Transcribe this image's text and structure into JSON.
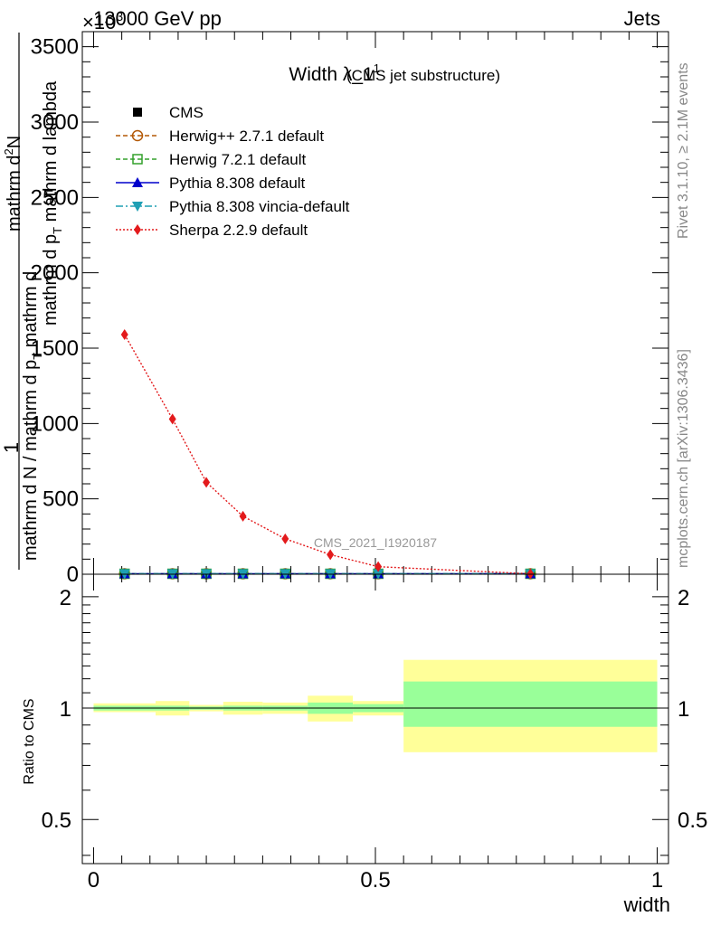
{
  "header": {
    "energy_label": "13000 GeV pp",
    "process_label": "Jets",
    "exponent_label": "×10",
    "exponent_power": "3"
  },
  "side_labels": {
    "rivet": "Rivet 3.1.10, ≥ 2.1M events",
    "mcplots": "mcplots.cern.ch [arXiv:1306.3436]"
  },
  "chart_data": [
    {
      "type": "line",
      "title": "Width λ_1",
      "title_superscript": "1",
      "subtitle": "(CMS jet substructure)",
      "watermark": "CMS_2021_I1920187",
      "ylabel_numerator_top": "1",
      "ylabel_numerator": "mathrm d",
      "ylabel_numerator_sup": "2",
      "ylabel_numerator_tail": "N",
      "ylabel_denominator_top": "mathrm d p",
      "ylabel_denominator_top_sub": "T",
      "ylabel_denominator_top_tail": " mathrm d lambda",
      "ylabel_denominator": "mathrm d N / mathrm d p",
      "ylabel_denominator_sub": "T",
      "ylabel_denominator_tail": " mathrm d",
      "xlim": [
        -0.02,
        1.02
      ],
      "ylim": [
        0,
        3.6
      ],
      "yticks": [
        0,
        0.5,
        1.0,
        1.5,
        2.0,
        2.5,
        3.0,
        3.5
      ],
      "ytick_labels": [
        "0",
        "500",
        "1000",
        "1500",
        "2000",
        "2500",
        "3000",
        "3500"
      ],
      "x_bin_edges": [
        0,
        0.11,
        0.17,
        0.23,
        0.3,
        0.38,
        0.46,
        0.55,
        1.0
      ],
      "legend_position": "top-left",
      "series": [
        {
          "name": "CMS",
          "color": "#000000",
          "marker": "square-filled",
          "x": [
            0.055,
            0.14,
            0.2,
            0.265,
            0.34,
            0.42,
            0.505,
            0.775
          ],
          "y": [
            0.003,
            0.003,
            0.003,
            0.003,
            0.003,
            0.003,
            0.003,
            0.003
          ]
        },
        {
          "name": "Herwig++ 2.7.1 default",
          "color": "#b35806",
          "marker": "circle-open",
          "dash": "5,3",
          "x": [
            0.055,
            0.14,
            0.2,
            0.265,
            0.34,
            0.42,
            0.505,
            0.775
          ],
          "y": [
            0.003,
            0.003,
            0.003,
            0.003,
            0.003,
            0.003,
            0.003,
            0.003
          ]
        },
        {
          "name": "Herwig 7.2.1 default",
          "color": "#33a02c",
          "marker": "square-open",
          "dash": "5,3",
          "x": [
            0.055,
            0.14,
            0.2,
            0.265,
            0.34,
            0.42,
            0.505,
            0.775
          ],
          "y": [
            0.003,
            0.003,
            0.003,
            0.003,
            0.003,
            0.003,
            0.003,
            0.003
          ]
        },
        {
          "name": "Pythia 8.308 default",
          "color": "#0000cc",
          "marker": "triangle-up",
          "x": [
            0.055,
            0.14,
            0.2,
            0.265,
            0.34,
            0.42,
            0.505,
            0.775
          ],
          "y": [
            0.003,
            0.003,
            0.003,
            0.003,
            0.003,
            0.003,
            0.003,
            0.003
          ]
        },
        {
          "name": "Pythia 8.308 vincia-default",
          "color": "#1f9fb4",
          "marker": "triangle-down",
          "dash": "8,3,2,3",
          "x": [
            0.055,
            0.14,
            0.2,
            0.265,
            0.34,
            0.42,
            0.505,
            0.775
          ],
          "y": [
            0.003,
            0.003,
            0.003,
            0.003,
            0.003,
            0.003,
            0.003,
            0.003
          ]
        },
        {
          "name": "Sherpa 2.2.9 default",
          "color": "#e31a1c",
          "marker": "diamond",
          "dash": "2,2",
          "x": [
            0.055,
            0.14,
            0.2,
            0.265,
            0.34,
            0.42,
            0.505,
            0.775
          ],
          "y": [
            1.59,
            1.03,
            0.61,
            0.385,
            0.235,
            0.13,
            0.05,
            0.003
          ]
        }
      ]
    },
    {
      "type": "area",
      "ylabel": "Ratio to CMS",
      "xlabel": "width",
      "xlim": [
        -0.02,
        1.02
      ],
      "ylim": [
        0.38,
        2.3
      ],
      "log_scale_y": true,
      "yticks": [
        0.5,
        1,
        2
      ],
      "ytick_labels": [
        "0.5",
        "1",
        "2"
      ],
      "xticks": [
        0,
        0.5,
        1
      ],
      "xtick_labels": [
        "0",
        "0.5",
        "1"
      ],
      "reference_line": 1,
      "bands": {
        "bin_edges": [
          0,
          0.11,
          0.17,
          0.23,
          0.3,
          0.38,
          0.46,
          0.55,
          1.0
        ],
        "inner_color": "#99ff99",
        "outer_color": "#ffff99",
        "inner_low": [
          0.985,
          0.985,
          0.99,
          0.985,
          0.985,
          0.965,
          0.975,
          0.89
        ],
        "inner_high": [
          1.015,
          1.015,
          1.01,
          1.015,
          1.015,
          1.035,
          1.025,
          1.18
        ],
        "outer_low": [
          0.975,
          0.955,
          0.98,
          0.96,
          0.965,
          0.92,
          0.955,
          0.76
        ],
        "outer_high": [
          1.03,
          1.045,
          1.02,
          1.04,
          1.035,
          1.08,
          1.045,
          1.35
        ]
      }
    }
  ]
}
